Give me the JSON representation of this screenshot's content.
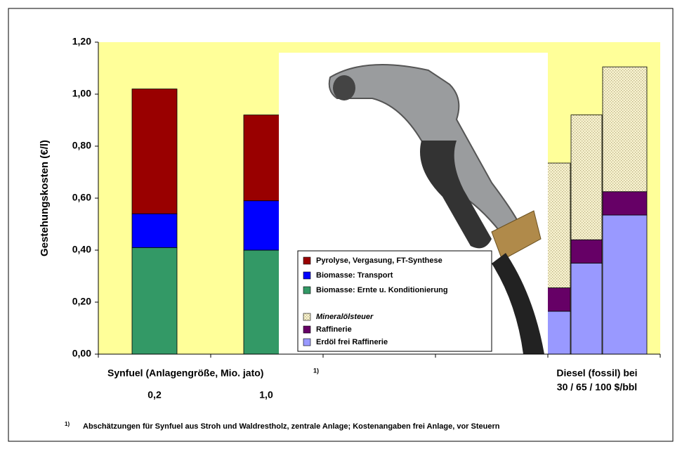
{
  "chart_data": {
    "type": "bar",
    "stacked": true,
    "y_label": "Gestehungskosten (€/l)",
    "categories": [
      "0,2",
      "1,0",
      null,
      null,
      null
    ],
    "series": [
      {
        "name": "Pyrolyse, Vergasung, FT-Synthese",
        "color": "#990000",
        "values": [
          0.48,
          0.33,
          null,
          null,
          null
        ]
      },
      {
        "name": "Biomasse: Transport",
        "color": "#0000ff",
        "values": [
          0.13,
          0.19,
          null,
          null,
          null
        ]
      },
      {
        "name": "Biomasse: Ernte u. Konditionierung",
        "color": "#339966",
        "values": [
          0.41,
          0.4,
          null,
          null,
          null
        ]
      },
      {
        "name": "Mineralölsteuer",
        "color": "#f2ecc0",
        "dotted": true,
        "italic": true,
        "values": [
          null,
          null,
          0.48,
          0.48,
          0.48
        ]
      },
      {
        "name": "Raffinerie",
        "color": "#660066",
        "values": [
          null,
          null,
          0.09,
          0.09,
          0.09
        ]
      },
      {
        "name": "Erdöl frei Raffinerie",
        "color": "#9999ff",
        "values": [
          null,
          null,
          0.165,
          0.35,
          0.535
        ]
      }
    ],
    "ylim": [
      0,
      1.2
    ],
    "yticks": [
      {
        "value": 0,
        "label": "0,00"
      },
      {
        "value": 0.2,
        "label": "0,20"
      },
      {
        "value": 0.4,
        "label": "0,40"
      },
      {
        "value": 0.6,
        "label": "0,60"
      },
      {
        "value": 0.8,
        "label": "0,80"
      },
      {
        "value": 1.0,
        "label": "1,00"
      },
      {
        "value": 1.2,
        "label": "1,20"
      }
    ],
    "grid": false,
    "group_labels": {
      "synfuel": "Synfuel (Anlagengröße, Mio. jato)",
      "synfuel_note": "1)",
      "diesel": [
        "Diesel (fossil) bei",
        "30 / 65 / 100 $/bbl"
      ]
    },
    "footnote": {
      "mark": "1)",
      "text": "Abschätzungen für Synfuel aus Stroh und Waldrestholz, zentrale Anlage; Kostenangaben frei Anlage, vor Steuern"
    }
  }
}
